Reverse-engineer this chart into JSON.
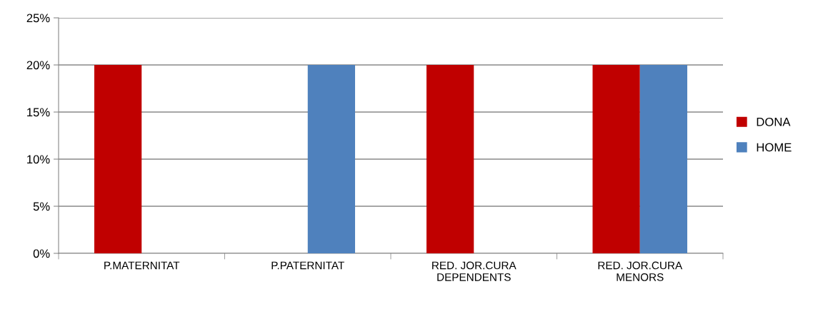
{
  "chart_data": {
    "type": "bar",
    "categories": [
      "P.MATERNITAT",
      "P.PATERNITAT",
      "RED. JOR.CURA\nDEPENDENTS",
      "RED. JOR.CURA\nMENORS"
    ],
    "series": [
      {
        "name": "DONA",
        "color": "#c00000",
        "values": [
          20,
          0,
          20,
          20
        ]
      },
      {
        "name": "HOME",
        "color": "#4f81bd",
        "values": [
          0,
          20,
          0,
          20
        ]
      }
    ],
    "ylim": [
      0,
      25
    ],
    "yticks": [
      {
        "value": 0,
        "label": "0%"
      },
      {
        "value": 5,
        "label": "5%"
      },
      {
        "value": 10,
        "label": "10%"
      },
      {
        "value": 15,
        "label": "15%"
      },
      {
        "value": 20,
        "label": "20%"
      },
      {
        "value": 25,
        "label": "25%"
      }
    ],
    "grid": "y",
    "legend": "right"
  }
}
